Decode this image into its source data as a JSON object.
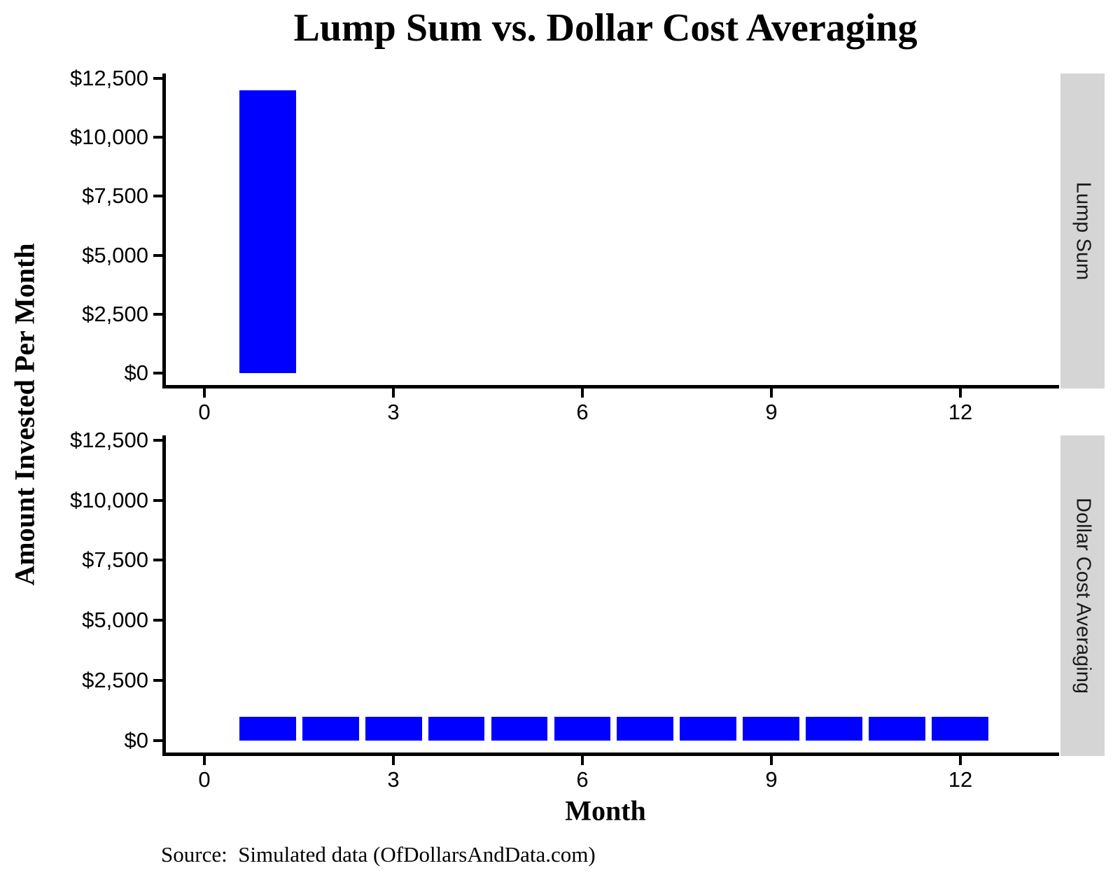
{
  "chart_data": {
    "type": "bar",
    "title": "Lump Sum vs. Dollar Cost Averaging",
    "xlabel": "Month",
    "ylabel": "Amount Invested Per Month",
    "caption": "Source:  Simulated data (OfDollarsAndData.com)",
    "bar_color": "#0000ff",
    "strip_color": "#d5d5d5",
    "axis_color": "#000000",
    "grid": false,
    "legend": "none",
    "bar_width": 0.9,
    "xlim": [
      -0.667,
      13.567
    ],
    "ylim": [
      -500,
      12700
    ],
    "x_ticks": [
      {
        "value": 0,
        "label": "0"
      },
      {
        "value": 3,
        "label": "3"
      },
      {
        "value": 6,
        "label": "6"
      },
      {
        "value": 9,
        "label": "9"
      },
      {
        "value": 12,
        "label": "12"
      }
    ],
    "y_ticks": [
      {
        "value": 0,
        "label": "$0"
      },
      {
        "value": 2500,
        "label": "$2,500"
      },
      {
        "value": 5000,
        "label": "$5,000"
      },
      {
        "value": 7500,
        "label": "$7,500"
      },
      {
        "value": 10000,
        "label": "$10,000"
      },
      {
        "value": 12500,
        "label": "$12,500"
      }
    ],
    "facets": [
      {
        "label": "Lump Sum",
        "bars": [
          {
            "x": 1,
            "y": 12000
          }
        ]
      },
      {
        "label": "Dollar Cost Averaging",
        "bars": [
          {
            "x": 1,
            "y": 1000
          },
          {
            "x": 2,
            "y": 1000
          },
          {
            "x": 3,
            "y": 1000
          },
          {
            "x": 4,
            "y": 1000
          },
          {
            "x": 5,
            "y": 1000
          },
          {
            "x": 6,
            "y": 1000
          },
          {
            "x": 7,
            "y": 1000
          },
          {
            "x": 8,
            "y": 1000
          },
          {
            "x": 9,
            "y": 1000
          },
          {
            "x": 10,
            "y": 1000
          },
          {
            "x": 11,
            "y": 1000
          },
          {
            "x": 12,
            "y": 1000
          }
        ]
      }
    ]
  }
}
